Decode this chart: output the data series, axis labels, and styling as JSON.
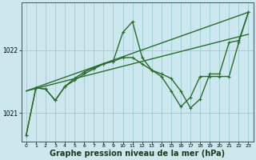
{
  "background_color": "#cce8ee",
  "grid_color": "#99ccd4",
  "line_color": "#2d6a2d",
  "xlabel": "Graphe pression niveau de la mer (hPa)",
  "xlabel_fontsize": 7,
  "ylabel_ticks": [
    1021,
    1022
  ],
  "xlim": [
    -0.5,
    23.5
  ],
  "ylim": [
    1020.55,
    1022.75
  ],
  "xticks": [
    0,
    1,
    2,
    3,
    4,
    5,
    6,
    7,
    8,
    9,
    10,
    11,
    12,
    13,
    14,
    15,
    16,
    17,
    18,
    19,
    20,
    21,
    22,
    23
  ],
  "series": [
    {
      "x": [
        0,
        23
      ],
      "y": [
        1021.35,
        1022.6
      ],
      "marker": null,
      "linewidth": 1.0
    },
    {
      "x": [
        0,
        23
      ],
      "y": [
        1021.35,
        1022.25
      ],
      "marker": null,
      "linewidth": 1.0
    },
    {
      "x": [
        0,
        1,
        2,
        3,
        4,
        5,
        6,
        7,
        8,
        9,
        10,
        11,
        12,
        13,
        14,
        15,
        16,
        17,
        18,
        19,
        20,
        21,
        22,
        23
      ],
      "y": [
        1020.65,
        1021.4,
        1021.38,
        1021.2,
        1021.42,
        1021.55,
        1021.65,
        1021.72,
        1021.78,
        1021.82,
        1022.28,
        1022.45,
        1021.88,
        1021.68,
        1021.62,
        1021.55,
        1021.35,
        1021.08,
        1021.22,
        1021.62,
        1021.62,
        1022.12,
        1022.15,
        1022.6
      ],
      "marker": "+",
      "linewidth": 1.0
    },
    {
      "x": [
        0,
        1,
        2,
        3,
        4,
        5,
        6,
        7,
        8,
        9,
        10,
        11,
        12,
        13,
        14,
        15,
        16,
        17,
        18,
        19,
        20,
        21,
        22,
        23
      ],
      "y": [
        1020.65,
        1021.4,
        1021.38,
        1021.2,
        1021.42,
        1021.52,
        1021.62,
        1021.7,
        1021.78,
        1021.82,
        1021.88,
        1021.88,
        1021.78,
        1021.68,
        1021.58,
        1021.35,
        1021.1,
        1021.25,
        1021.58,
        1021.58,
        1021.58,
        1021.58,
        1022.12,
        1022.6
      ],
      "marker": "+",
      "linewidth": 1.0
    }
  ]
}
